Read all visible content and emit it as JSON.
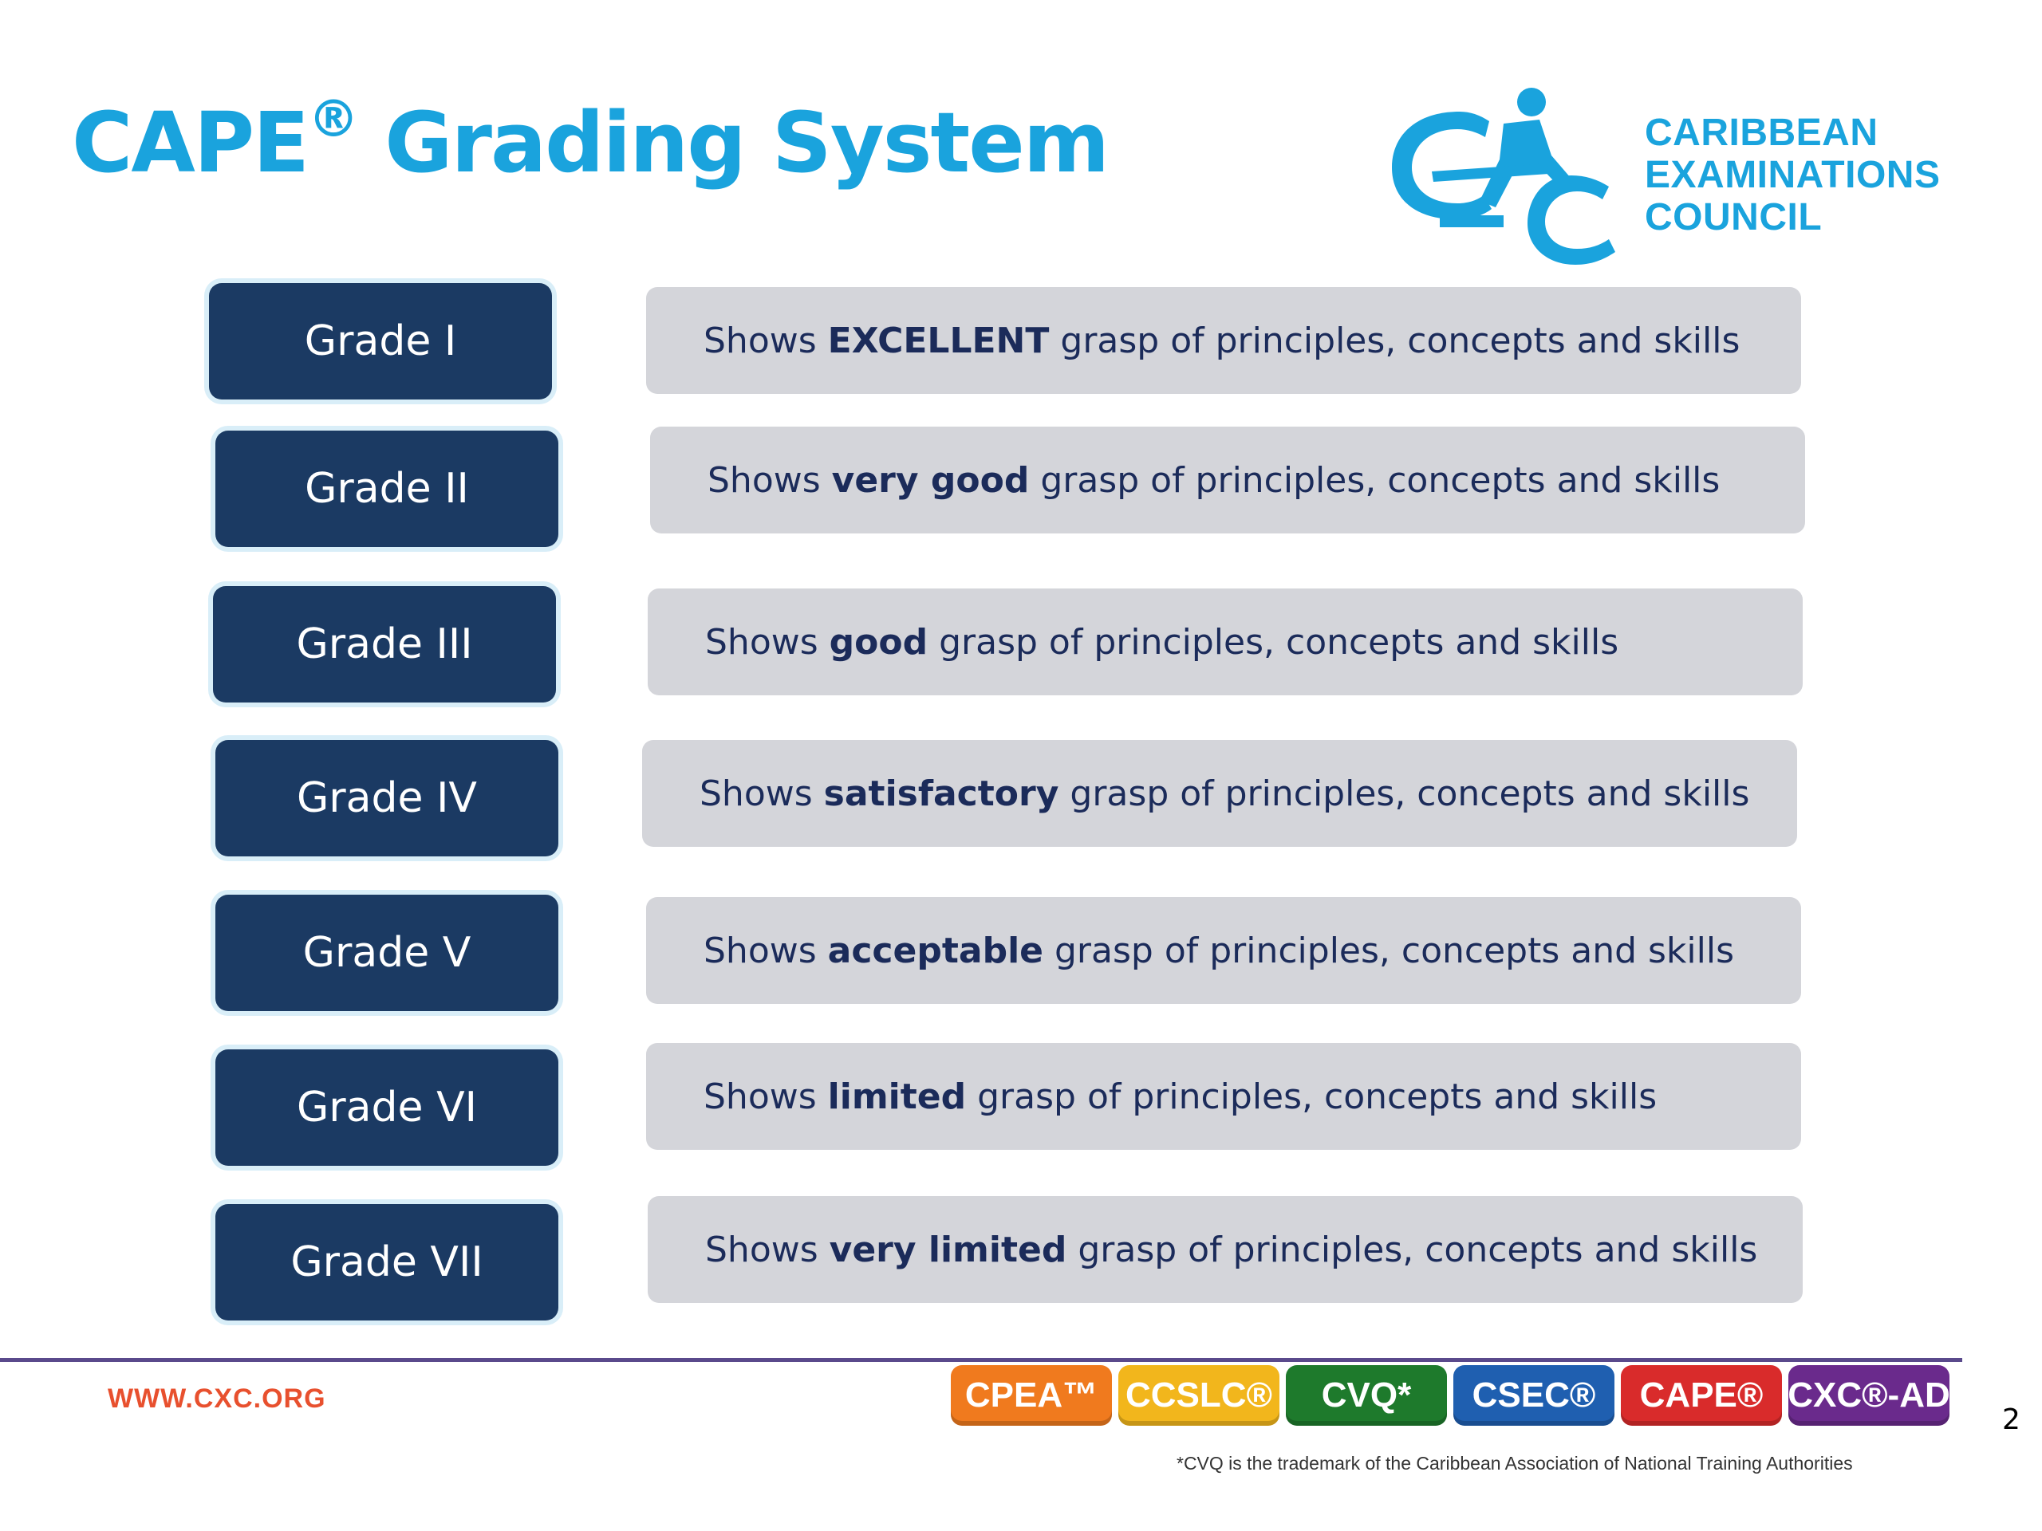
{
  "title": {
    "main": "CAPE",
    "registered": "®",
    "rest": "Grading System"
  },
  "logo": {
    "icon": "cxc-logo-icon",
    "color": "#1aa3dd",
    "lines": [
      "CARIBBEAN",
      "EXAMINATIONS",
      "COUNCIL"
    ]
  },
  "grades": [
    {
      "label": "Grade I",
      "prefix": "Shows",
      "emphasis": "EXCELLENT",
      "suffix": "grasp of principles, concepts and skills"
    },
    {
      "label": "Grade II",
      "prefix": "Shows",
      "emphasis": "very good",
      "suffix": "grasp of principles, concepts and skills"
    },
    {
      "label": "Grade III",
      "prefix": "Shows",
      "emphasis": "good",
      "suffix": "grasp of principles, concepts and skills"
    },
    {
      "label": "Grade IV",
      "prefix": "Shows",
      "emphasis": "satisfactory",
      "suffix": "grasp of principles, concepts and skills"
    },
    {
      "label": "Grade V",
      "prefix": "Shows",
      "emphasis": "acceptable",
      "suffix": "grasp of principles, concepts and skills"
    },
    {
      "label": "Grade VI",
      "prefix": "Shows",
      "emphasis": "limited",
      "suffix": "grasp of principles, concepts and skills"
    },
    {
      "label": "Grade VII",
      "prefix": "Shows",
      "emphasis": "very limited",
      "suffix": "grasp of principles, concepts and skills"
    }
  ],
  "colors": {
    "title": "#1aa3dd",
    "grade_box": "#1b3a63",
    "description_box": "#d4d5da",
    "description_text": "#1b2b5a"
  },
  "footer": {
    "url": "WWW.CXC.ORG",
    "badges": [
      {
        "label": "CPEA™",
        "color": "#f07a1e"
      },
      {
        "label": "CCSLC®",
        "color": "#f2b61c"
      },
      {
        "label": "CVQ*",
        "color": "#1e7a2c"
      },
      {
        "label": "CSEC®",
        "color": "#1f5fb0"
      },
      {
        "label": "CAPE®",
        "color": "#d92b2b"
      },
      {
        "label": "CXC®-AD",
        "color": "#6a2a8c"
      }
    ],
    "page_number": "2",
    "footnote": "*CVQ is the trademark of the Caribbean Association of National Training Authorities"
  }
}
